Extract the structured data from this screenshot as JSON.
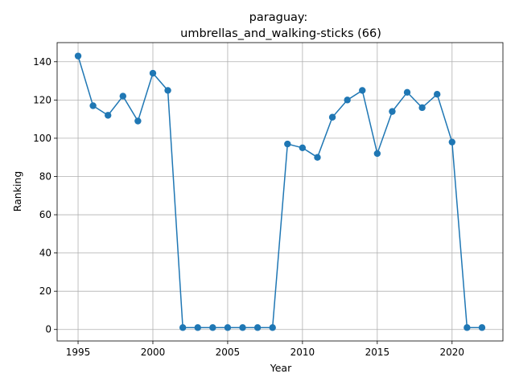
{
  "chart_data": {
    "type": "line",
    "title_line1": "paraguay:",
    "title_line2": "umbrellas_and_walking-sticks (66)",
    "xlabel": "Year",
    "ylabel": "Ranking",
    "xlim": [
      1993.6,
      2023.4
    ],
    "ylim": [
      -6,
      150
    ],
    "xticks": [
      1995,
      2000,
      2005,
      2010,
      2015,
      2020
    ],
    "yticks": [
      0,
      20,
      40,
      60,
      80,
      100,
      120,
      140
    ],
    "grid": true,
    "line_color": "#1f77b4",
    "x": [
      1995,
      1996,
      1997,
      1998,
      1999,
      2000,
      2001,
      2002,
      2003,
      2004,
      2005,
      2006,
      2007,
      2008,
      2009,
      2010,
      2011,
      2012,
      2013,
      2014,
      2015,
      2016,
      2017,
      2018,
      2019,
      2020,
      2021,
      2022
    ],
    "y": [
      143,
      117,
      112,
      122,
      109,
      134,
      125,
      1,
      1,
      1,
      1,
      1,
      1,
      1,
      97,
      95,
      90,
      111,
      120,
      125,
      92,
      114,
      124,
      116,
      123,
      98,
      1,
      1
    ]
  }
}
